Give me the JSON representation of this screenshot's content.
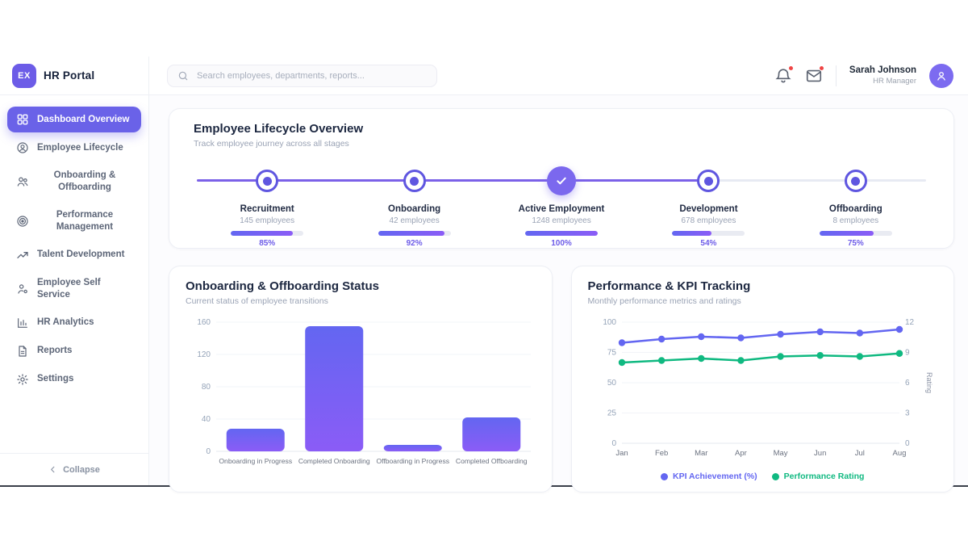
{
  "app": {
    "logo_text": "EX",
    "title": "HR Portal"
  },
  "header": {
    "search_placeholder": "Search employees, departments, reports...",
    "user": {
      "name": "Sarah Johnson",
      "role": "HR Manager"
    }
  },
  "sidebar": {
    "items": [
      {
        "label": "Dashboard Overview",
        "icon": "grid-icon",
        "active": true
      },
      {
        "label": "Employee Lifecycle",
        "icon": "user-circle-icon",
        "active": false
      },
      {
        "label": "Onboarding & Offboarding",
        "icon": "users-icon",
        "active": false
      },
      {
        "label": "Performance Management",
        "icon": "target-icon",
        "active": false
      },
      {
        "label": "Talent Development",
        "icon": "trending-up-icon",
        "active": false
      },
      {
        "label": "Employee Self Service",
        "icon": "user-gear-icon",
        "active": false
      },
      {
        "label": "HR Analytics",
        "icon": "bar-chart-icon",
        "active": false
      },
      {
        "label": "Reports",
        "icon": "document-icon",
        "active": false
      },
      {
        "label": "Settings",
        "icon": "gear-icon",
        "active": false
      }
    ],
    "collapse_label": "Collapse"
  },
  "lifecycle": {
    "title": "Employee Lifecycle Overview",
    "subtitle": "Track employee journey across all stages",
    "line_progress_percent": 70,
    "stages": [
      {
        "name": "Recruitment",
        "employees": "145 employees",
        "percent": 85,
        "percent_label": "85%",
        "state": "dot"
      },
      {
        "name": "Onboarding",
        "employees": "42 employees",
        "percent": 92,
        "percent_label": "92%",
        "state": "dot"
      },
      {
        "name": "Active Employment",
        "employees": "1248 employees",
        "percent": 100,
        "percent_label": "100%",
        "state": "check"
      },
      {
        "name": "Development",
        "employees": "678 employees",
        "percent": 54,
        "percent_label": "54%",
        "state": "dot"
      },
      {
        "name": "Offboarding",
        "employees": "8 employees",
        "percent": 75,
        "percent_label": "75%",
        "state": "dot"
      }
    ]
  },
  "chart_data": [
    {
      "type": "bar",
      "title": "Onboarding & Offboarding Status",
      "subtitle": "Current status of employee transitions",
      "categories": [
        "Onboarding in Progress",
        "Completed Onboarding",
        "Offboarding in Progress",
        "Completed Offboarding"
      ],
      "values": [
        28,
        155,
        8,
        42
      ],
      "xlabel": "",
      "ylabel": "",
      "ylim": [
        0,
        160
      ],
      "yticks": [
        0,
        40,
        80,
        120,
        160
      ],
      "grid": true,
      "bar_gradient": [
        "#6366f1",
        "#8b5cf6"
      ]
    },
    {
      "type": "line",
      "title": "Performance & KPI Tracking",
      "subtitle": "Monthly performance metrics and ratings",
      "x": [
        "Jan",
        "Feb",
        "Mar",
        "Apr",
        "May",
        "Jun",
        "Jul",
        "Aug"
      ],
      "series": [
        {
          "name": "KPI Achievement (%)",
          "axis": "left",
          "color": "#6366f1",
          "values": [
            83,
            86,
            88,
            87,
            90,
            92,
            91,
            94
          ]
        },
        {
          "name": "Performance Rating",
          "axis": "right",
          "color": "#10b981",
          "values": [
            8.0,
            8.2,
            8.4,
            8.2,
            8.6,
            8.7,
            8.6,
            8.9
          ]
        }
      ],
      "left_axis": {
        "lim": [
          0,
          100
        ],
        "ticks": [
          0,
          25,
          50,
          75,
          100
        ]
      },
      "right_axis": {
        "lim": [
          0,
          12
        ],
        "ticks": [
          0,
          3,
          6,
          9,
          12
        ],
        "label": "Rating"
      },
      "grid": true,
      "legend_position": "bottom"
    }
  ],
  "colors": {
    "accent": "#6366f1",
    "accent_violet": "#8b5cf6",
    "active_nav": "#6a62e8",
    "green": "#10b981",
    "badge_red": "#ef4444",
    "track_gray": "#e7eaf3"
  }
}
